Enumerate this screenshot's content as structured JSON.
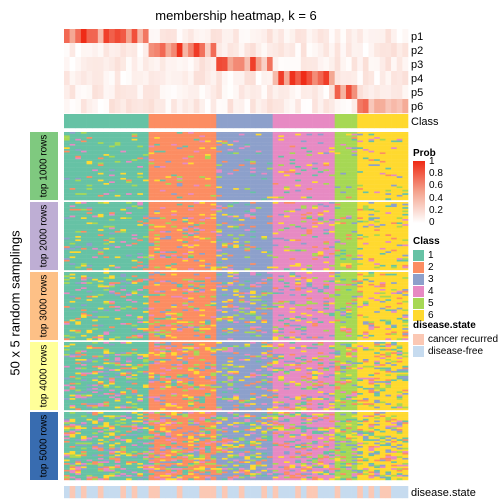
{
  "title": "membership heatmap, k = 6",
  "ylabel": "50 x 5 random samplings",
  "prob_rows": [
    "p1",
    "p2",
    "p3",
    "p4",
    "p5",
    "p6"
  ],
  "class_row_label": "Class",
  "bottom_label": "disease.state",
  "bands": [
    "top 1000 rows",
    "top 2000 rows",
    "top 3000 rows",
    "top 4000 rows",
    "top 5000 rows"
  ],
  "band_colors": [
    "#7fc97f",
    "#beaed4",
    "#fdc086",
    "#ffff99",
    "#386cb0"
  ],
  "class_colors": {
    "1": "#66c2a5",
    "2": "#fc8d62",
    "3": "#8da0cb",
    "4": "#e78ac3",
    "5": "#a6d854",
    "6": "#ffd92f"
  },
  "disease_colors": {
    "cancer recurred": "#fbc8b4",
    "disease-free": "#c6dbef"
  },
  "legend": {
    "prob": {
      "title": "Prob",
      "ticks": [
        "1",
        "0.8",
        "0.6",
        "0.4",
        "0.2",
        "0"
      ]
    },
    "class": {
      "title": "Class",
      "items": [
        "1",
        "2",
        "3",
        "4",
        "5",
        "6"
      ]
    },
    "disease": {
      "title": "disease.state",
      "items": [
        "cancer recurred",
        "disease-free"
      ]
    }
  },
  "chart_data": {
    "type": "heatmap",
    "title": "membership heatmap, k = 6",
    "ylabel": "50 x 5 random samplings",
    "row_annotations": [
      "p1",
      "p2",
      "p3",
      "p4",
      "p5",
      "p6",
      "Class"
    ],
    "column_annotation": "disease.state",
    "class_groups": [
      {
        "class": "1",
        "n_samples": 15,
        "dominant_prob_row": "p1"
      },
      {
        "class": "2",
        "n_samples": 12,
        "dominant_prob_row": "p2"
      },
      {
        "class": "3",
        "n_samples": 10,
        "dominant_prob_row": "p3"
      },
      {
        "class": "4",
        "n_samples": 11,
        "dominant_prob_row": "p4"
      },
      {
        "class": "5",
        "n_samples": 4,
        "dominant_prob_row": "p5"
      },
      {
        "class": "6",
        "n_samples": 9,
        "dominant_prob_row": "p6"
      }
    ],
    "disease_pattern": [
      "disease-free",
      "cancer recurred",
      "disease-free",
      "cancer recurred",
      "disease-free",
      "disease-free",
      "cancer recurred",
      "disease-free",
      "disease-free",
      "disease-free",
      "cancer recurred",
      "disease-free",
      "cancer recurred",
      "disease-free",
      "disease-free",
      "cancer recurred",
      "cancer recurred",
      "disease-free",
      "disease-free",
      "disease-free",
      "cancer recurred",
      "disease-free",
      "disease-free",
      "disease-free",
      "cancer recurred",
      "cancer recurred",
      "cancer recurred",
      "disease-free",
      "cancer recurred",
      "disease-free",
      "disease-free",
      "cancer recurred",
      "disease-free",
      "disease-free",
      "disease-free",
      "cancer recurred",
      "disease-free",
      "cancer recurred",
      "disease-free",
      "disease-free",
      "disease-free",
      "cancer recurred",
      "disease-free",
      "cancer recurred",
      "cancer recurred",
      "disease-free",
      "disease-free",
      "disease-free",
      "cancer recurred",
      "disease-free",
      "disease-free",
      "disease-free",
      "cancer recurred",
      "disease-free",
      "cancer recurred",
      "disease-free",
      "cancer recurred",
      "cancer recurred",
      "disease-free",
      "disease-free",
      "disease-free"
    ],
    "samplings_per_band": 50,
    "prob_scale": [
      0,
      1
    ]
  }
}
